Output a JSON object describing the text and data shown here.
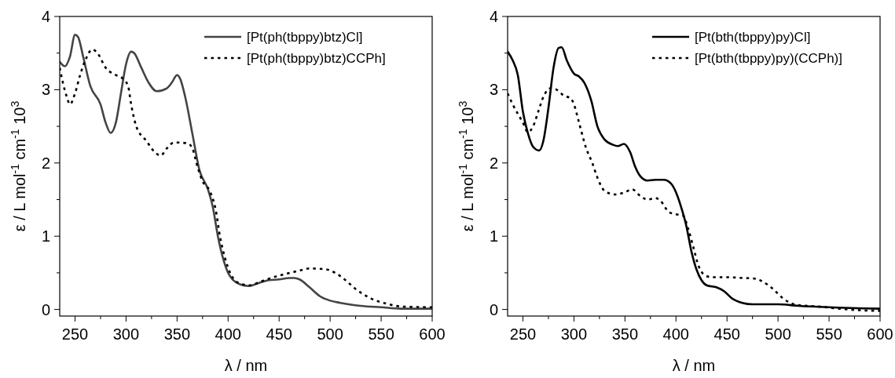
{
  "chart_data": [
    {
      "type": "line",
      "xlabel": "λ / nm",
      "ylabel": "ε / L mol$^{-1}$ cm$^{-1}$ 10$^{3}$",
      "xlim": [
        235,
        600
      ],
      "ylim": [
        -0.09,
        4
      ],
      "xticks": [
        250,
        {
          "value": 275,
          "label": null
        },
        300,
        {
          "value": 325,
          "label": null
        },
        350,
        {
          "value": 375,
          "label": null
        },
        400,
        {
          "value": 425,
          "label": null
        },
        450,
        {
          "value": 475,
          "label": null
        },
        500,
        {
          "value": 525,
          "label": null
        },
        550,
        {
          "value": 575,
          "label": null
        },
        600
      ],
      "yticks": [
        0,
        {
          "value": 0.5,
          "label": null
        },
        1,
        {
          "value": 1.5,
          "label": null
        },
        2,
        {
          "value": 2.5,
          "label": null
        },
        3,
        {
          "value": 3.5,
          "label": null
        },
        4
      ],
      "legend": "top right",
      "grid": false,
      "series": [
        {
          "name": "[Pt(ph(tbppy)btz)Cl]",
          "color": "#444444",
          "line_style": "solid",
          "x": [
            235,
            240,
            245,
            250,
            253,
            258,
            265,
            275,
            280,
            285,
            290,
            295,
            300,
            305,
            308,
            315,
            322,
            330,
            340,
            345,
            350,
            353,
            358,
            365,
            372,
            380,
            385,
            390,
            395,
            400,
            405,
            412,
            420,
            430,
            440,
            450,
            460,
            465,
            470,
            480,
            490,
            500,
            510,
            530,
            550,
            570,
            600
          ],
          "values": [
            3.38,
            3.32,
            3.45,
            3.75,
            3.72,
            3.45,
            3.05,
            2.8,
            2.55,
            2.41,
            2.55,
            2.95,
            3.35,
            3.52,
            3.5,
            3.3,
            3.1,
            2.98,
            3.02,
            3.1,
            3.2,
            3.15,
            2.9,
            2.4,
            1.9,
            1.65,
            1.4,
            1.0,
            0.7,
            0.5,
            0.4,
            0.34,
            0.32,
            0.36,
            0.4,
            0.41,
            0.43,
            0.43,
            0.41,
            0.3,
            0.18,
            0.12,
            0.09,
            0.05,
            0.03,
            0.01,
            0.01
          ]
        },
        {
          "name": "[Pt(ph(tbppy)btz)CCPh]",
          "color": "#000000",
          "line_style": "dotted",
          "x": [
            235,
            238,
            242,
            245,
            250,
            255,
            260,
            267,
            272,
            280,
            290,
            297,
            302,
            305,
            310,
            320,
            328,
            334,
            340,
            347,
            360,
            365,
            370,
            375,
            382,
            388,
            392,
            397,
            402,
            408,
            415,
            422,
            430,
            440,
            455,
            470,
            480,
            495,
            505,
            515,
            525,
            540,
            555,
            570,
            600
          ],
          "values": [
            3.3,
            3.1,
            2.9,
            2.8,
            2.95,
            3.2,
            3.4,
            3.55,
            3.5,
            3.3,
            3.2,
            3.15,
            3.05,
            2.8,
            2.5,
            2.3,
            2.15,
            2.1,
            2.2,
            2.28,
            2.27,
            2.2,
            1.95,
            1.75,
            1.62,
            1.35,
            1.0,
            0.7,
            0.5,
            0.38,
            0.34,
            0.33,
            0.37,
            0.42,
            0.48,
            0.53,
            0.56,
            0.55,
            0.5,
            0.4,
            0.28,
            0.15,
            0.08,
            0.04,
            0.03
          ]
        }
      ]
    },
    {
      "type": "line",
      "xlabel": "λ / nm",
      "ylabel": "ε / L mol$^{-1}$ cm$^{-1}$ 10$^{3}$",
      "xlim": [
        235,
        600
      ],
      "ylim": [
        -0.09,
        4
      ],
      "xticks": [
        250,
        {
          "value": 275,
          "label": null
        },
        300,
        {
          "value": 325,
          "label": null
        },
        350,
        {
          "value": 375,
          "label": null
        },
        400,
        {
          "value": 425,
          "label": null
        },
        450,
        {
          "value": 475,
          "label": null
        },
        500,
        {
          "value": 525,
          "label": null
        },
        550,
        {
          "value": 575,
          "label": null
        },
        600
      ],
      "yticks": [
        0,
        {
          "value": 0.5,
          "label": null
        },
        1,
        {
          "value": 1.5,
          "label": null
        },
        2,
        {
          "value": 2.5,
          "label": null
        },
        3,
        {
          "value": 3.5,
          "label": null
        },
        4
      ],
      "legend": "top right",
      "grid": false,
      "series": [
        {
          "name": "[Pt(bth(tbppy)py)Cl]",
          "color": "#000000",
          "line_style": "solid",
          "x": [
            235,
            240,
            245,
            250,
            255,
            260,
            266,
            270,
            275,
            280,
            285,
            288,
            293,
            300,
            305,
            310,
            317,
            323,
            330,
            338,
            343,
            349,
            355,
            360,
            365,
            372,
            380,
            388,
            395,
            400,
            405,
            410,
            415,
            420,
            425,
            430,
            440,
            447,
            455,
            465,
            475,
            500,
            520,
            550,
            600
          ],
          "values": [
            3.52,
            3.4,
            3.2,
            2.7,
            2.4,
            2.22,
            2.17,
            2.3,
            2.75,
            3.3,
            3.57,
            3.58,
            3.4,
            3.22,
            3.18,
            3.1,
            2.85,
            2.5,
            2.32,
            2.25,
            2.23,
            2.26,
            2.15,
            1.95,
            1.82,
            1.76,
            1.77,
            1.77,
            1.72,
            1.6,
            1.4,
            1.15,
            0.8,
            0.55,
            0.4,
            0.33,
            0.3,
            0.25,
            0.15,
            0.09,
            0.07,
            0.07,
            0.05,
            0.03,
            0.01
          ]
        },
        {
          "name": "[Pt(bth(tbppy)py)(CCPh)]",
          "color": "#000000",
          "line_style": "dotted",
          "x": [
            235,
            240,
            250,
            255,
            260,
            265,
            270,
            277,
            283,
            290,
            297,
            300,
            305,
            312,
            318,
            323,
            330,
            340,
            350,
            357,
            365,
            372,
            380,
            385,
            393,
            400,
            407,
            412,
            417,
            422,
            428,
            435,
            450,
            465,
            478,
            485,
            495,
            505,
            512,
            520,
            540,
            560,
            580,
            600
          ],
          "values": [
            2.95,
            2.8,
            2.55,
            2.42,
            2.5,
            2.7,
            2.9,
            3.02,
            3.0,
            2.92,
            2.88,
            2.8,
            2.55,
            2.2,
            2.0,
            1.8,
            1.62,
            1.57,
            1.6,
            1.64,
            1.55,
            1.5,
            1.52,
            1.48,
            1.33,
            1.3,
            1.28,
            1.1,
            0.85,
            0.6,
            0.47,
            0.44,
            0.44,
            0.43,
            0.42,
            0.38,
            0.28,
            0.15,
            0.09,
            0.06,
            0.04,
            0.01,
            -0.01,
            -0.02
          ]
        }
      ]
    }
  ]
}
